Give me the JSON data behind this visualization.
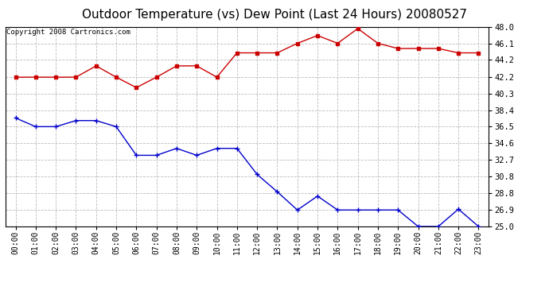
{
  "title": "Outdoor Temperature (vs) Dew Point (Last 24 Hours) 20080527",
  "copyright": "Copyright 2008 Cartronics.com",
  "x_labels": [
    "00:00",
    "01:00",
    "02:00",
    "03:00",
    "04:00",
    "05:00",
    "06:00",
    "07:00",
    "08:00",
    "09:00",
    "10:00",
    "11:00",
    "12:00",
    "13:00",
    "14:00",
    "15:00",
    "16:00",
    "17:00",
    "18:00",
    "19:00",
    "20:00",
    "21:00",
    "22:00",
    "23:00"
  ],
  "temp_data": [
    37.5,
    36.5,
    36.5,
    37.2,
    37.2,
    36.5,
    33.2,
    33.2,
    34.0,
    33.2,
    34.0,
    34.0,
    31.0,
    29.0,
    26.9,
    28.5,
    26.9,
    26.9,
    26.9,
    26.9,
    25.0,
    25.0,
    27.0,
    25.0
  ],
  "dew_data": [
    42.2,
    42.2,
    42.2,
    42.2,
    43.5,
    42.2,
    41.0,
    42.2,
    43.5,
    43.5,
    42.2,
    45.0,
    45.0,
    45.0,
    46.1,
    47.0,
    46.1,
    47.8,
    46.1,
    45.5,
    45.5,
    45.5,
    45.0,
    45.0
  ],
  "temp_color": "#0000cc",
  "dew_color": "#cc0000",
  "ylim_min": 25.0,
  "ylim_max": 48.0,
  "yticks": [
    25.0,
    26.9,
    28.8,
    30.8,
    32.7,
    34.6,
    36.5,
    38.4,
    40.3,
    42.2,
    44.2,
    46.1,
    48.0
  ],
  "bg_color": "#ffffff",
  "grid_color": "#bbbbbb",
  "title_fontsize": 11,
  "copyright_fontsize": 6.5,
  "tick_fontsize": 7.5,
  "xtick_fontsize": 7
}
